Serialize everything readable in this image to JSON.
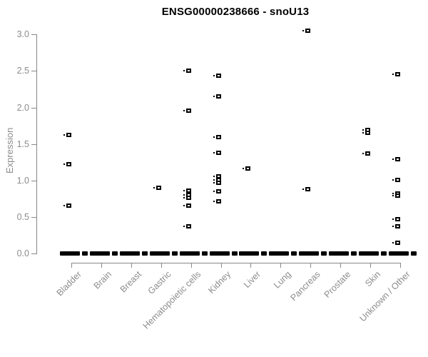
{
  "title": "ENSG00000238666 - snoU13",
  "chart_data": {
    "type": "scatter",
    "title": "ENSG00000238666 - snoU13",
    "xlabel": "",
    "ylabel": "Expression",
    "ylim": [
      0.0,
      3.0
    ],
    "yticks": [
      "0.0",
      "0.5",
      "1.0",
      "1.5",
      "2.0",
      "2.5",
      "3.0"
    ],
    "grid": false,
    "legend": false,
    "marker": "open-square",
    "marker_color": "#000000",
    "axis_color": "#888888",
    "tick_label_color": "#8c8c8c",
    "categories": [
      "Bladder",
      "Brain",
      "Breast",
      "Gastric",
      "Hematopoietic cells",
      "Kidney",
      "Liver",
      "Lung",
      "Pancreas",
      "Prostate",
      "Skin",
      "Unknown / Other"
    ],
    "series": [
      {
        "category": "Bladder",
        "nonzero_values": [
          1.62,
          1.22,
          0.66
        ],
        "zero_cluster": true
      },
      {
        "category": "Brain",
        "nonzero_values": [],
        "zero_cluster": true
      },
      {
        "category": "Breast",
        "nonzero_values": [],
        "zero_cluster": true
      },
      {
        "category": "Gastric",
        "nonzero_values": [
          0.9
        ],
        "zero_cluster": true
      },
      {
        "category": "Hematopoietic cells",
        "nonzero_values": [
          2.5,
          1.96,
          0.86,
          0.8,
          0.76,
          0.66,
          0.37
        ],
        "zero_cluster": true
      },
      {
        "category": "Kidney",
        "nonzero_values": [
          2.44,
          2.15,
          1.59,
          1.38,
          1.06,
          1.01,
          0.97,
          0.85,
          0.71
        ],
        "zero_cluster": true
      },
      {
        "category": "Liver",
        "nonzero_values": [
          1.16
        ],
        "zero_cluster": true
      },
      {
        "category": "Lung",
        "nonzero_values": [],
        "zero_cluster": true
      },
      {
        "category": "Pancreas",
        "nonzero_values": [
          3.05,
          0.88
        ],
        "zero_cluster": true
      },
      {
        "category": "Prostate",
        "nonzero_values": [],
        "zero_cluster": true
      },
      {
        "category": "Skin",
        "nonzero_values": [
          1.69,
          1.65,
          1.37
        ],
        "zero_cluster": true
      },
      {
        "category": "Unknown / Other",
        "nonzero_values": [
          2.46,
          1.29,
          1.01,
          0.82,
          0.79,
          0.47,
          0.37,
          0.15
        ],
        "zero_cluster": true
      }
    ]
  }
}
